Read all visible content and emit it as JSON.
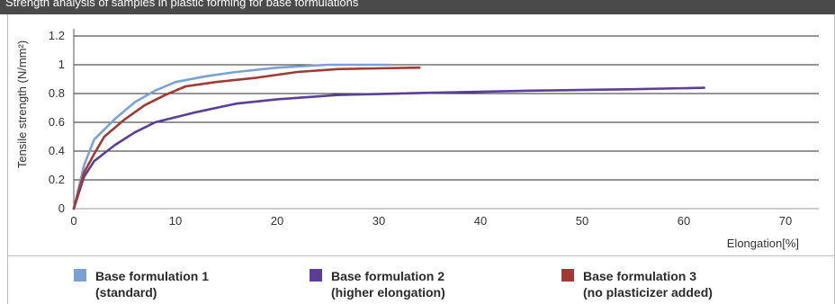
{
  "title": "Strength analysis of samples in plastic forming for base formulations",
  "chart_data": {
    "type": "line",
    "ylabel": "Tensile strength (N/mm²)",
    "xlabel": "Elongation[%]",
    "xlim": [
      0,
      70
    ],
    "ylim": [
      0,
      1.2
    ],
    "x_ticks": [
      "0",
      "10",
      "20",
      "30",
      "40",
      "50",
      "60",
      "70"
    ],
    "y_ticks": [
      "0",
      "0.2",
      "0.4",
      "0.6",
      "0.8",
      "1",
      "1.2"
    ],
    "grid": "horizontal",
    "legend_position": "bottom",
    "series": [
      {
        "name_line1": "Base formulation 1",
        "name_line2": "(standard)",
        "color": "#7ba1d3",
        "points": [
          [
            0,
            0
          ],
          [
            1,
            0.3
          ],
          [
            2,
            0.48
          ],
          [
            4,
            0.62
          ],
          [
            6,
            0.74
          ],
          [
            8,
            0.82
          ],
          [
            10,
            0.88
          ],
          [
            13,
            0.92
          ],
          [
            16,
            0.95
          ],
          [
            20,
            0.98
          ],
          [
            25,
            1.0
          ],
          [
            31,
            1.0
          ]
        ]
      },
      {
        "name_line1": "Base formulation 2",
        "name_line2": "(higher elongation)",
        "color": "#5b3e96",
        "points": [
          [
            0,
            0
          ],
          [
            1,
            0.22
          ],
          [
            2,
            0.33
          ],
          [
            4,
            0.44
          ],
          [
            6,
            0.53
          ],
          [
            8,
            0.6
          ],
          [
            12,
            0.67
          ],
          [
            16,
            0.73
          ],
          [
            20,
            0.76
          ],
          [
            26,
            0.79
          ],
          [
            35,
            0.805
          ],
          [
            45,
            0.82
          ],
          [
            55,
            0.83
          ],
          [
            62,
            0.84
          ]
        ]
      },
      {
        "name_line1": "Base formulation 3",
        "name_line2": "(no plasticizer added)",
        "color": "#a03a32",
        "points": [
          [
            0,
            0
          ],
          [
            1,
            0.25
          ],
          [
            2,
            0.38
          ],
          [
            3,
            0.5
          ],
          [
            5,
            0.62
          ],
          [
            7,
            0.72
          ],
          [
            9,
            0.79
          ],
          [
            11,
            0.85
          ],
          [
            14,
            0.88
          ],
          [
            18,
            0.91
          ],
          [
            22,
            0.95
          ],
          [
            26,
            0.97
          ],
          [
            30,
            0.975
          ],
          [
            34,
            0.98
          ]
        ]
      }
    ]
  }
}
